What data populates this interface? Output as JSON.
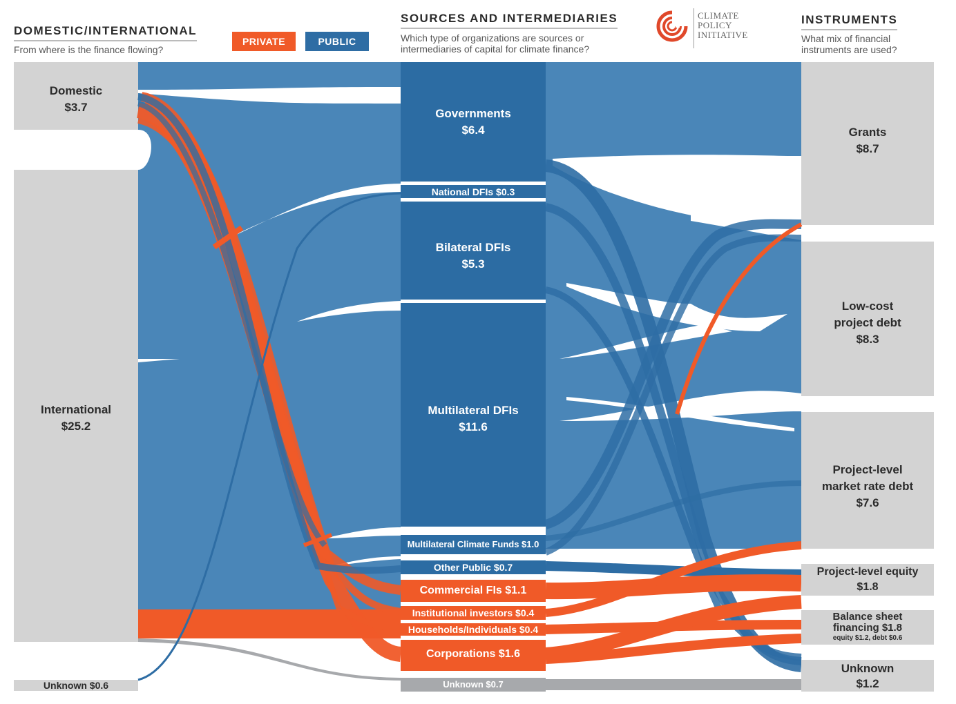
{
  "header": {
    "left_title": "DOMESTIC/INTERNATIONAL",
    "left_subtitle": "From where is the finance flowing?",
    "middle_title": "SOURCES AND INTERMEDIARIES",
    "middle_subtitle_line1": "Which type of organizations are sources or",
    "middle_subtitle_line2": "intermediaries of capital for climate finance?",
    "right_title": "INSTRUMENTS",
    "right_subtitle_line1": "What mix of financial",
    "right_subtitle_line2": "instruments are used?"
  },
  "legend": {
    "private_label": "PRIVATE",
    "public_label": "PUBLIC",
    "private_color": "#f05a28",
    "public_color": "#2e6da4"
  },
  "logo": {
    "line1": "CLIMATE",
    "line2": "POLICY",
    "line3": "INITIATIVE"
  },
  "colors": {
    "public_flow": "#2e6da4",
    "public_node": "#2c6ca3",
    "private_flow": "#f05a28",
    "unknown_flow": "#a7a9ac",
    "gray_node": "#d3d3d3"
  },
  "nodes": {
    "domestic": {
      "name": "Domestic",
      "value": "$3.7"
    },
    "international": {
      "name": "International",
      "value": "$25.2"
    },
    "unknown_origin": {
      "label": "Unknown $0.6"
    },
    "governments": {
      "name": "Governments",
      "value": "$6.4"
    },
    "national_dfis": {
      "label": "National DFIs $0.3"
    },
    "bilateral_dfis": {
      "name": "Bilateral DFIs",
      "value": "$5.3"
    },
    "multilateral_dfis": {
      "name": "Multilateral DFIs",
      "value": "$11.6"
    },
    "multilateral_climate_funds": {
      "label": "Multilateral Climate Funds $1.0"
    },
    "other_public": {
      "label": "Other Public $0.7"
    },
    "commercial_fis": {
      "label": "Commercial FIs $1.1"
    },
    "institutional_investors": {
      "label": "Institutional investors $0.4"
    },
    "households": {
      "label": "Households/Individuals $0.4"
    },
    "corporations": {
      "label": "Corporations $1.6"
    },
    "unknown_source": {
      "label": "Unknown $0.7"
    },
    "grants": {
      "name": "Grants",
      "value": "$8.7"
    },
    "low_cost_debt": {
      "line1": "Low-cost",
      "line2": "project debt",
      "value": "$8.3"
    },
    "market_rate_debt": {
      "line1": "Project-level",
      "line2": "market rate debt",
      "value": "$7.6"
    },
    "project_equity": {
      "name": "Project-level equity",
      "value": "$1.8"
    },
    "balance_sheet": {
      "line1": "Balance sheet",
      "line2": "financing $1.8",
      "note": "equity $1.2, debt $0.6"
    },
    "unknown_instrument": {
      "name": "Unknown",
      "value": "$1.2"
    }
  }
}
